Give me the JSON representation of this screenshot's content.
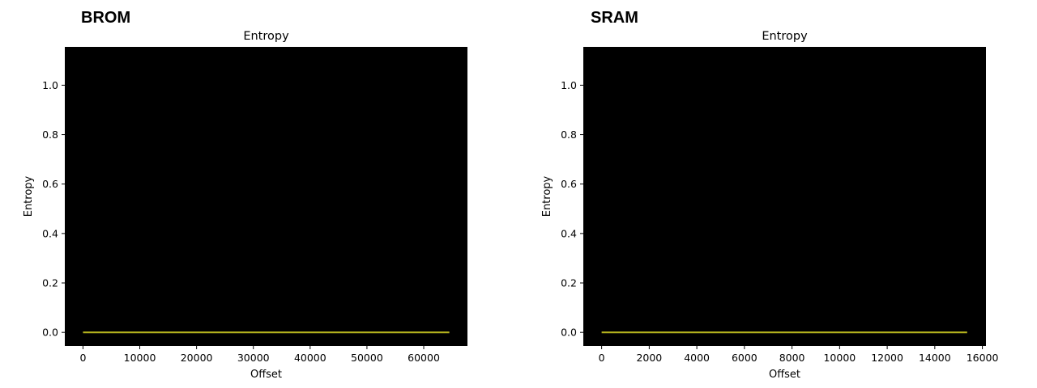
{
  "panels": [
    {
      "label": "BROM"
    },
    {
      "label": "SRAM"
    }
  ],
  "chart_data": [
    {
      "type": "line",
      "title": "Entropy",
      "xlabel": "Offset",
      "ylabel": "Entropy",
      "xlim": [
        -3200,
        67700
      ],
      "ylim": [
        -0.055,
        1.155
      ],
      "xticks": [
        0,
        10000,
        20000,
        30000,
        40000,
        50000,
        60000
      ],
      "yticks": [
        0.0,
        0.2,
        0.4,
        0.6,
        0.8,
        1.0
      ],
      "grid": false,
      "background": "#000000",
      "series": [
        {
          "x": [
            0,
            64512
          ],
          "y": [
            0.0,
            0.0
          ],
          "color": "#b5b31e"
        }
      ]
    },
    {
      "type": "line",
      "title": "Entropy",
      "xlabel": "Offset",
      "ylabel": "Entropy",
      "xlim": [
        -770,
        16150
      ],
      "ylim": [
        -0.055,
        1.155
      ],
      "xticks": [
        0,
        2000,
        4000,
        6000,
        8000,
        10000,
        12000,
        14000,
        16000
      ],
      "yticks": [
        0.0,
        0.2,
        0.4,
        0.6,
        0.8,
        1.0
      ],
      "grid": false,
      "background": "#000000",
      "series": [
        {
          "x": [
            0,
            15360
          ],
          "y": [
            0.0,
            0.0
          ],
          "color": "#b5b31e"
        }
      ]
    }
  ]
}
